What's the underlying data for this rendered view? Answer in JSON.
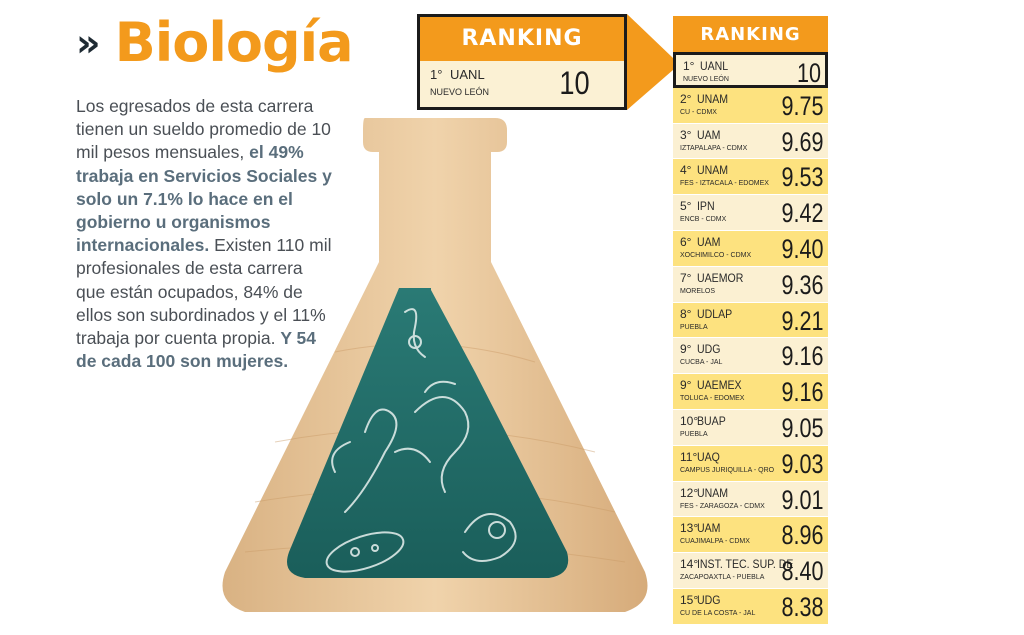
{
  "header": {
    "chevron": "»",
    "title": "Biología"
  },
  "blurb": {
    "p1": "Los egresados de esta carrera tienen un sueldo promedio de 10 mil pesos mensuales,",
    "h1": "el 49% trabaja en Servicios Sociales y solo un 7.1% lo hace en el gobierno u organismos internacionales.",
    "p2": "Existen 110 mil profesionales de esta carrera que están ocupados, 84% de ellos son subordinados y el 11% trabaja por cuenta propia.",
    "h2": "Y 54 de cada 100 son mujeres."
  },
  "mini_card": {
    "heading": "RANKING",
    "position": "1°",
    "university": "UANL",
    "location": "NUEVO LEÓN",
    "score": "10"
  },
  "ranking": {
    "heading": "RANKING",
    "rows": [
      {
        "pos": "1°",
        "uni": "UANL",
        "loc": "NUEVO LEÓN",
        "score": "10"
      },
      {
        "pos": "2°",
        "uni": "UNAM",
        "loc": "CU - CDMX",
        "score": "9.75"
      },
      {
        "pos": "3°",
        "uni": "UAM",
        "loc": "IZTAPALAPA - CDMX",
        "score": "9.69"
      },
      {
        "pos": "4°",
        "uni": "UNAM",
        "loc": "FES - IZTACALA - EDOMEX",
        "score": "9.53"
      },
      {
        "pos": "5°",
        "uni": "IPN",
        "loc": "ENCB - CDMX",
        "score": "9.42"
      },
      {
        "pos": "6°",
        "uni": "UAM",
        "loc": "XOCHIMILCO - CDMX",
        "score": "9.40"
      },
      {
        "pos": "7°",
        "uni": "UAEMOR",
        "loc": "MORELOS",
        "score": "9.36"
      },
      {
        "pos": "8°",
        "uni": "UDLAP",
        "loc": "PUEBLA",
        "score": "9.21"
      },
      {
        "pos": "9°",
        "uni": "UDG",
        "loc": "CUCBA - JAL",
        "score": "9.16"
      },
      {
        "pos": "9°",
        "uni": "UAEMEX",
        "loc": "TOLUCA - EDOMEX",
        "score": "9.16"
      },
      {
        "pos": "10°",
        "uni": "BUAP",
        "loc": "PUEBLA",
        "score": "9.05"
      },
      {
        "pos": "11°",
        "uni": "UAQ",
        "loc": "CAMPUS JURIQUILLA - QRO",
        "score": "9.03"
      },
      {
        "pos": "12°",
        "uni": "UNAM",
        "loc": "FES - ZARAGOZA - CDMX",
        "score": "9.01"
      },
      {
        "pos": "13°",
        "uni": "UAM",
        "loc": "CUAJIMALPA - CDMX",
        "score": "8.96"
      },
      {
        "pos": "14°",
        "uni": "INST. TEC. SUP. DE",
        "loc": "ZACAPOAXTLA - PUEBLA",
        "score": "8.40"
      },
      {
        "pos": "15°",
        "uni": "UDG",
        "loc": "CU DE LA COSTA - JAL",
        "score": "8.38"
      }
    ]
  },
  "colors": {
    "accent": "#f39a1c",
    "row_light": "#fbf0d2",
    "row_dark": "#fde27f",
    "wood": "#e9c9a0",
    "board": "#1f6b67"
  },
  "icons": {
    "flask": "flask-illustration",
    "arrow": "callout-arrow"
  }
}
